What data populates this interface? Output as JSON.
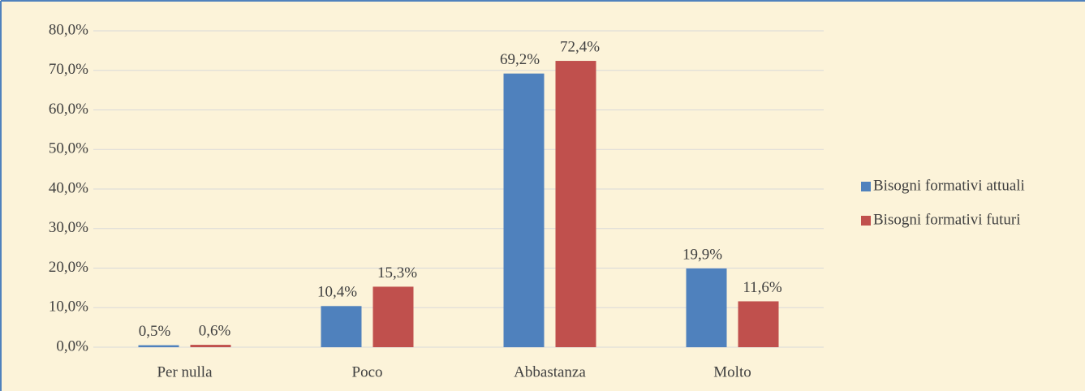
{
  "chart_data": {
    "type": "bar",
    "categories": [
      "Per nulla",
      "Poco",
      "Abbastanza",
      "Molto"
    ],
    "series": [
      {
        "name": "Bisogni formativi attuali",
        "color": "#4f81bd",
        "values": [
          0.5,
          10.4,
          69.2,
          19.9
        ],
        "value_labels": [
          "0,5%",
          "10,4%",
          "69,2%",
          "19,9%"
        ]
      },
      {
        "name": "Bisogni formativi futuri",
        "color": "#c0504d",
        "values": [
          0.6,
          15.3,
          72.4,
          11.6
        ],
        "value_labels": [
          "0,6%",
          "15,3%",
          "72,4%",
          "11,6%"
        ]
      }
    ],
    "ylim": [
      0,
      80
    ],
    "yticks": [
      {
        "value": 0,
        "label": "0,0%"
      },
      {
        "value": 10,
        "label": "10,0%"
      },
      {
        "value": 20,
        "label": "20,0%"
      },
      {
        "value": 30,
        "label": "30,0%"
      },
      {
        "value": 40,
        "label": "40,0%"
      },
      {
        "value": 50,
        "label": "50,0%"
      },
      {
        "value": 60,
        "label": "60,0%"
      },
      {
        "value": 70,
        "label": "70,0%"
      },
      {
        "value": 80,
        "label": "80,0%"
      }
    ],
    "grid": true,
    "legend": "right"
  }
}
